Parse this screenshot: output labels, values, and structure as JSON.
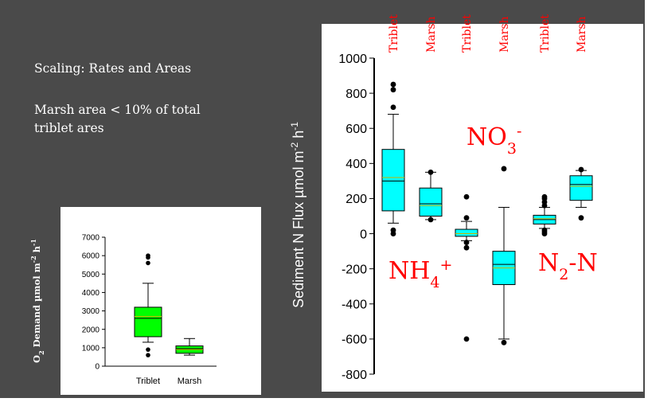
{
  "slide": {
    "heading": "Scaling: Rates and Areas",
    "note_line1": "Marsh area < 10% of total",
    "note_line2": "triblet ares"
  },
  "colors": {
    "background": "#4a4a4a",
    "o2_box": "#00ff00",
    "n_box": "#00ffff",
    "annotation": "#ff0000"
  },
  "chart_data": [
    {
      "type": "box",
      "ylabel_base": "O",
      "ylabel_sub": "2",
      "ylabel_rest": " Demand µmol m",
      "ylabel_exp1": "-2",
      "ylabel_mid": " h",
      "ylabel_exp2": "-1",
      "categories": [
        "Triblet",
        "Marsh"
      ],
      "ylim": [
        0,
        7000
      ],
      "yticks": [
        "0",
        "1000",
        "2000",
        "3000",
        "4000",
        "5000",
        "6000",
        "7000"
      ],
      "boxes": [
        {
          "category": "Triblet",
          "whisker_low": 1300,
          "q1": 1600,
          "median": 2600,
          "mean": 2700,
          "q3": 3200,
          "whisker_high": 4500,
          "outliers": [
            600,
            900,
            5600,
            5900,
            6000
          ]
        },
        {
          "category": "Marsh",
          "whisker_low": 600,
          "q1": 700,
          "median": 950,
          "mean": 900,
          "q3": 1100,
          "whisker_high": 1500,
          "outliers": []
        }
      ]
    },
    {
      "type": "box",
      "ylabel_main": "Sediment N Flux  µmol m",
      "ylabel_exp1": "-2",
      "ylabel_mid": " h",
      "ylabel_exp2": "-1",
      "ylim": [
        -800,
        1000
      ],
      "yticks": [
        "-800",
        "-600",
        "-400",
        "-200",
        "0",
        "200",
        "400",
        "600",
        "800",
        "1000"
      ],
      "column_labels": [
        "Triblet",
        "Marsh",
        "Triblet",
        "Marsh",
        "Triblet",
        "Marsh"
      ],
      "annotations": {
        "nh4_base": "NH",
        "nh4_sub": "4",
        "nh4_sup": "+",
        "no3_base": "NO",
        "no3_sub": "3",
        "no3_sup": "-",
        "n2_base": "N",
        "n2_sub": "2",
        "n2_rest": "-N"
      },
      "boxes": [
        {
          "category": "Triblet",
          "group": "NH4+",
          "whisker_low": 60,
          "q1": 130,
          "median": 300,
          "mean": 320,
          "q3": 480,
          "whisker_high": 680,
          "outliers": [
            0,
            20,
            720,
            820,
            850
          ]
        },
        {
          "category": "Marsh",
          "group": "NH4+",
          "whisker_low": 80,
          "q1": 100,
          "median": 170,
          "mean": 160,
          "q3": 260,
          "whisker_high": 350,
          "outliers": [
            80,
            350
          ]
        },
        {
          "category": "Triblet",
          "group": "NO3-",
          "whisker_low": -40,
          "q1": -15,
          "median": 0,
          "mean": 0,
          "q3": 25,
          "whisker_high": 70,
          "outliers": [
            -600,
            -80,
            -50,
            90,
            210
          ]
        },
        {
          "category": "Marsh",
          "group": "NO3-",
          "whisker_low": -600,
          "q1": -290,
          "median": -175,
          "mean": -195,
          "q3": -100,
          "whisker_high": 150,
          "outliers": [
            -620,
            370
          ]
        },
        {
          "category": "Triblet",
          "group": "N2-N",
          "whisker_low": 30,
          "q1": 55,
          "median": 80,
          "mean": 85,
          "q3": 105,
          "whisker_high": 150,
          "outliers": [
            0,
            10,
            20,
            160,
            180,
            200,
            210
          ]
        },
        {
          "category": "Marsh",
          "group": "N2-N",
          "whisker_low": 150,
          "q1": 190,
          "median": 280,
          "mean": 270,
          "q3": 330,
          "whisker_high": 360,
          "outliers": [
            90,
            365
          ]
        }
      ]
    }
  ]
}
